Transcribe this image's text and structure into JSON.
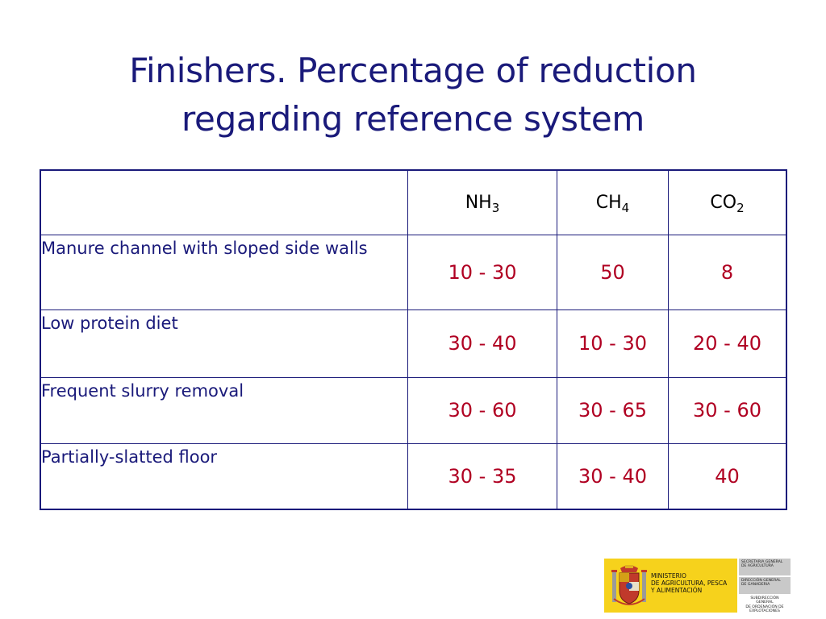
{
  "slide": {
    "title_line1": "Finishers. Percentage of reduction",
    "title_line2": "regarding reference system"
  },
  "table": {
    "headers": [
      {
        "main": "",
        "sub": ""
      },
      {
        "main": "NH",
        "sub": "3"
      },
      {
        "main": "CH",
        "sub": "4"
      },
      {
        "main": "CO",
        "sub": "2"
      }
    ],
    "rows": [
      {
        "label": "Manure channel with sloped side walls",
        "nh3": "10 - 30",
        "ch4": "50",
        "co2": "8"
      },
      {
        "label": "Low protein diet",
        "nh3": "30 - 40",
        "ch4": "10 - 30",
        "co2": "20 - 40"
      },
      {
        "label": "Frequent slurry removal",
        "nh3": "30 - 60",
        "ch4": "30 - 65",
        "co2": "30 - 60"
      },
      {
        "label": "Partially-slatted floor",
        "nh3": "30 - 35",
        "ch4": "30 - 40",
        "co2": "40"
      }
    ]
  },
  "logo": {
    "ministry_line1": "MINISTERIO",
    "ministry_line2": "DE AGRICULTURA, PESCA",
    "ministry_line3": "Y ALIMENTACIÓN",
    "secretaria_line1": "SECRETARIA GENERAL",
    "secretaria_line2": "DE AGRICULTURA",
    "direccion_line1": "DIRECCIÓN GENERAL",
    "direccion_line2": "DE GANADERIA",
    "subdireccion_line1": "SUBDIRECCIÓN GENERAL",
    "subdireccion_line2": "DE ORDENACIÓN DE",
    "subdireccion_line3": "EXPLOTACIONES"
  },
  "colors": {
    "title": "#1a1a7a",
    "label_text": "#1a1a7a",
    "value_text": "#b00022",
    "border": "#1a1a7a",
    "logo_yellow": "#f6d21c",
    "logo_gray": "#c9c9c9"
  }
}
